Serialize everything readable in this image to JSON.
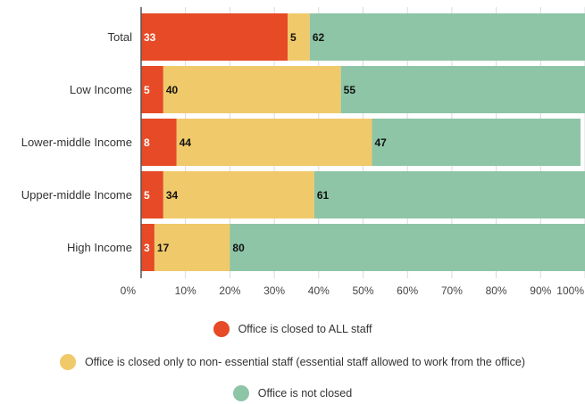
{
  "chart_data": {
    "type": "bar",
    "orientation": "horizontal",
    "stacked": true,
    "categories": [
      "Total",
      "Low Income",
      "Lower-middle Income",
      "Upper-middle Income",
      "High Income"
    ],
    "series": [
      {
        "name": "Office is closed to ALL staff",
        "color": "#E64A26",
        "label_color": "#ffffff",
        "values": [
          33,
          5,
          8,
          5,
          3
        ]
      },
      {
        "name": "Office is closed only to non- essential staff (essential staff allowed to work from the office)",
        "color": "#F0C96A",
        "label_color": "#111111",
        "values": [
          5,
          40,
          44,
          34,
          17
        ]
      },
      {
        "name": "Office is not closed",
        "color": "#8DC5A6",
        "label_color": "#111111",
        "values": [
          62,
          55,
          47,
          61,
          80
        ]
      }
    ],
    "xlim": [
      0,
      100
    ],
    "x_ticks": [
      "0%",
      "10%",
      "20%",
      "30%",
      "40%",
      "50%",
      "60%",
      "70%",
      "80%",
      "90%",
      "100%"
    ],
    "grid": true,
    "legend_position": "bottom"
  }
}
